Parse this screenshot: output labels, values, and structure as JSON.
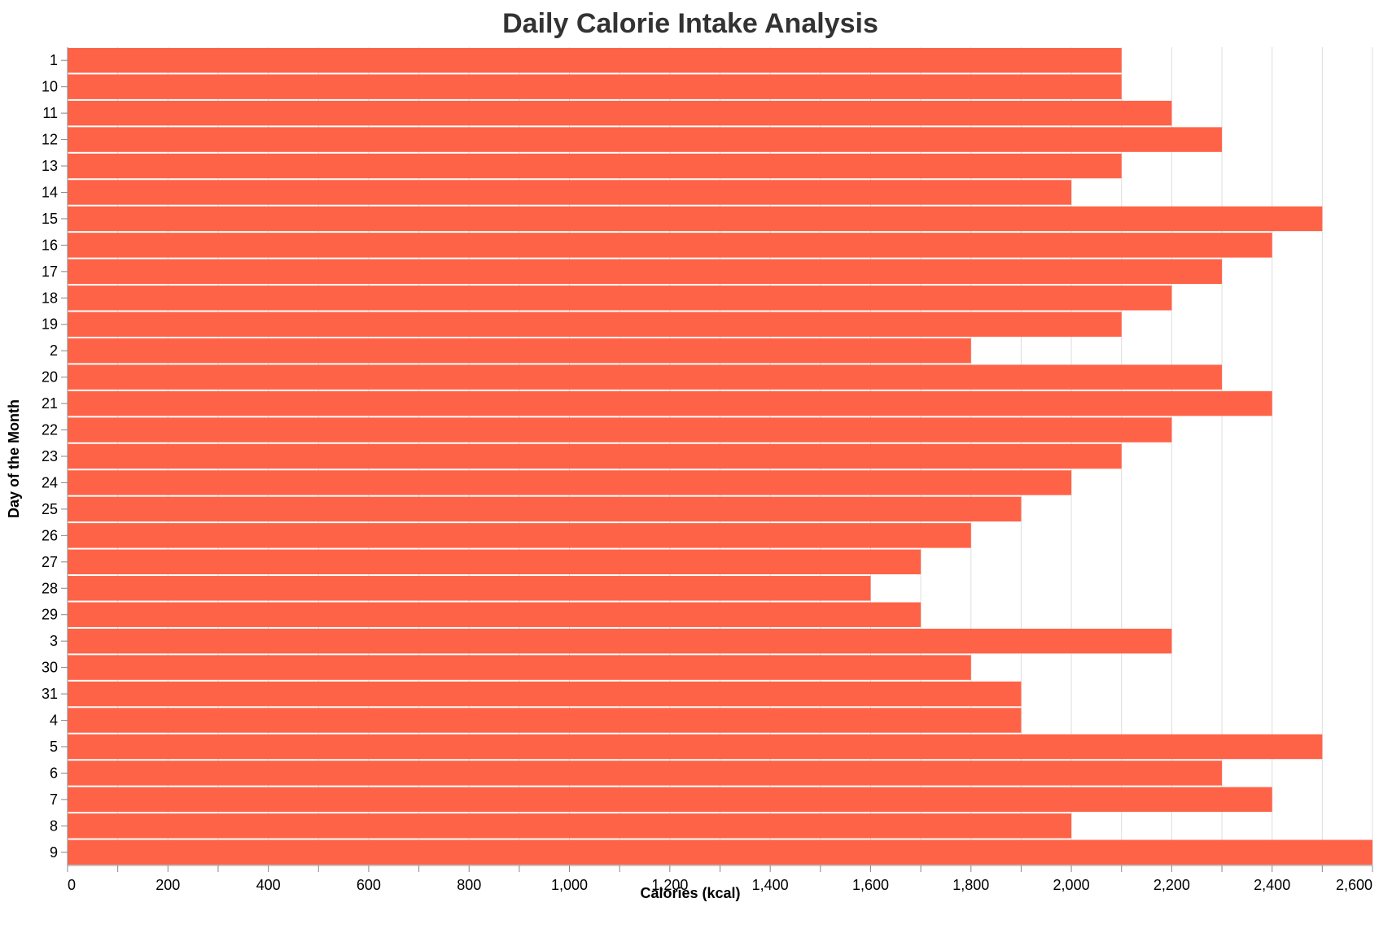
{
  "chart_data": {
    "type": "bar",
    "orientation": "horizontal",
    "title": "Daily Calorie Intake Analysis",
    "xlabel": "Calories (kcal)",
    "ylabel": "Day of the Month",
    "categories": [
      "1",
      "10",
      "11",
      "12",
      "13",
      "14",
      "15",
      "16",
      "17",
      "18",
      "19",
      "2",
      "20",
      "21",
      "22",
      "23",
      "24",
      "25",
      "26",
      "27",
      "28",
      "29",
      "3",
      "30",
      "31",
      "4",
      "5",
      "6",
      "7",
      "8",
      "9"
    ],
    "values": [
      2100,
      2100,
      2200,
      2300,
      2100,
      2000,
      2500,
      2400,
      2300,
      2200,
      2100,
      1800,
      2300,
      2400,
      2200,
      2100,
      2000,
      1900,
      1800,
      1700,
      1600,
      1700,
      2200,
      1800,
      1900,
      1900,
      2500,
      2300,
      2400,
      2000,
      2600
    ],
    "xlim": [
      0,
      2600
    ],
    "x_ticks": [
      "0",
      "200",
      "400",
      "600",
      "800",
      "1,000",
      "1,200",
      "1,400",
      "1,600",
      "1,800",
      "2,000",
      "2,200",
      "2,400",
      "2,600"
    ],
    "grid": true,
    "bar_color": "#ff6347"
  }
}
